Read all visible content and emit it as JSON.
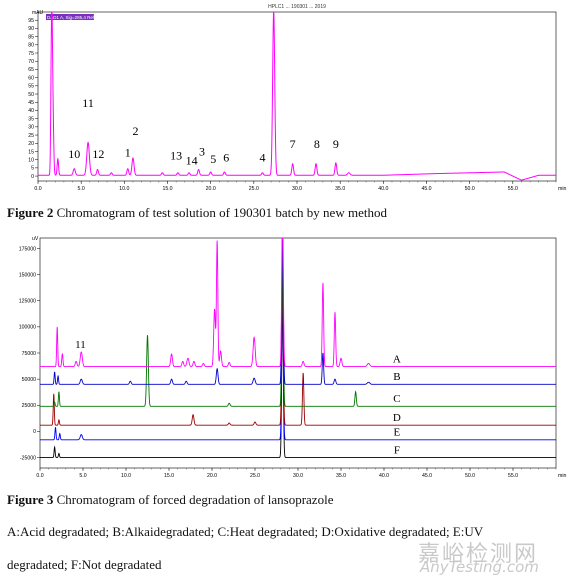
{
  "figure2": {
    "caption_label": "Figure 2",
    "caption_text": "Chromatogram of test solution of 190301 batch by new method",
    "chart_data": {
      "type": "line",
      "title": "",
      "top_header": "HPLC1 ... 190301 ... 2019",
      "ylabel": "mAU",
      "legend": "DAD1 A, Sig=285,4 Ref=360,100 (...)",
      "xlabel": "min",
      "xlim": [
        0,
        60
      ],
      "ylim": [
        -3,
        100
      ],
      "x_ticks": [
        0.0,
        5.0,
        10.0,
        15.0,
        20.0,
        25.0,
        30.0,
        35.0,
        40.0,
        45.0,
        50.0,
        55.0
      ],
      "x_tick_labels": [
        "0.0",
        "5.0",
        "10.0",
        "15.0",
        "20.0",
        "25.0",
        "30.0",
        "35.0",
        "40.0",
        "45.0",
        "50.0",
        "55.0"
      ],
      "y_ticks": [
        0,
        5,
        10,
        15,
        20,
        25,
        30,
        35,
        40,
        45,
        50,
        55,
        60,
        65,
        70,
        75,
        80,
        85,
        90,
        95
      ],
      "y_tick_labels": [
        "0",
        "5",
        "10",
        "15",
        "20",
        "25",
        "30",
        "35",
        "40",
        "45",
        "50",
        "55",
        "60",
        "65",
        "70",
        "75",
        "80",
        "85",
        "90",
        "95"
      ],
      "baseline": 0.5,
      "peaks": [
        {
          "x": 1.6,
          "h": 96,
          "w": 0.08
        },
        {
          "x": 1.75,
          "h": 30,
          "w": 0.08
        },
        {
          "x": 1.5,
          "h": 15,
          "w": 0.06
        },
        {
          "x": 2.3,
          "h": 10,
          "w": 0.08
        },
        {
          "x": 4.2,
          "h": 4,
          "w": 0.12
        },
        {
          "x": 5.8,
          "h": 20,
          "w": 0.15
        },
        {
          "x": 6.9,
          "h": 3.5,
          "w": 0.1
        },
        {
          "x": 8.5,
          "h": 1.5,
          "w": 0.1
        },
        {
          "x": 10.4,
          "h": 4,
          "w": 0.1
        },
        {
          "x": 11.0,
          "h": 10.5,
          "w": 0.12
        },
        {
          "x": 14.4,
          "h": 1.5,
          "w": 0.1
        },
        {
          "x": 16.2,
          "h": 1.5,
          "w": 0.1
        },
        {
          "x": 17.5,
          "h": 1.5,
          "w": 0.1
        },
        {
          "x": 18.6,
          "h": 3.5,
          "w": 0.1
        },
        {
          "x": 20.0,
          "h": 2,
          "w": 0.1
        },
        {
          "x": 21.6,
          "h": 2,
          "w": 0.1
        },
        {
          "x": 26.0,
          "h": 1.5,
          "w": 0.1
        },
        {
          "x": 27.3,
          "h": 100,
          "w": 0.12
        },
        {
          "x": 29.5,
          "h": 7,
          "w": 0.1
        },
        {
          "x": 32.2,
          "h": 7,
          "w": 0.1
        },
        {
          "x": 34.5,
          "h": 7.5,
          "w": 0.1
        },
        {
          "x": 36.0,
          "h": 1.5,
          "w": 0.15
        }
      ],
      "drift": [
        {
          "x": 0,
          "y": 0.5
        },
        {
          "x": 40,
          "y": 0.5
        },
        {
          "x": 46,
          "y": 1.5
        },
        {
          "x": 54,
          "y": 2.5
        },
        {
          "x": 56,
          "y": -2.5
        },
        {
          "x": 58,
          "y": 0.5
        },
        {
          "x": 60,
          "y": 0.5
        }
      ],
      "peak_labels": [
        {
          "text": "11",
          "x": 5.8,
          "y": 42
        },
        {
          "text": "10",
          "x": 4.2,
          "y": 11
        },
        {
          "text": "12",
          "x": 7.0,
          "y": 11
        },
        {
          "text": "1",
          "x": 10.4,
          "y": 12
        },
        {
          "text": "2",
          "x": 11.3,
          "y": 25
        },
        {
          "text": "13",
          "x": 16.0,
          "y": 10
        },
        {
          "text": "14",
          "x": 17.8,
          "y": 7
        },
        {
          "text": "3",
          "x": 19.0,
          "y": 12.5
        },
        {
          "text": "5",
          "x": 20.3,
          "y": 8
        },
        {
          "text": "6",
          "x": 21.8,
          "y": 9
        },
        {
          "text": "4",
          "x": 26.0,
          "y": 9
        },
        {
          "text": "7",
          "x": 29.5,
          "y": 17
        },
        {
          "text": "8",
          "x": 32.3,
          "y": 17
        },
        {
          "text": "9",
          "x": 34.5,
          "y": 17
        }
      ],
      "line_color": "#ff00ff"
    }
  },
  "figure3": {
    "caption_label": "Figure 3",
    "caption_text": "Chromatogram of forced degradation of lansoprazole",
    "legend_line1": "A:Acid degradated; B:Alkaidegradated; C:Heat degradated; D:Oxidative degradated; E:UV",
    "legend_line2": "degradated; F:Not degradated",
    "chart_data": {
      "type": "line",
      "title": "",
      "ylabel": "uV",
      "xlabel": "min",
      "xlim": [
        0,
        60
      ],
      "ylim": [
        -35000,
        185000
      ],
      "x_ticks": [
        0.0,
        5.0,
        10.0,
        15.0,
        20.0,
        25.0,
        30.0,
        35.0,
        40.0,
        45.0,
        50.0,
        55.0
      ],
      "x_tick_labels": [
        "0.0",
        "5.0",
        "10.0",
        "15.0",
        "20.0",
        "25.0",
        "30.0",
        "35.0",
        "40.0",
        "45.0",
        "50.0",
        "55.0"
      ],
      "y_ticks": [
        -25000,
        0,
        25000,
        50000,
        75000,
        100000,
        125000,
        150000,
        175000
      ],
      "y_tick_labels": [
        "-25000",
        "0",
        "25000",
        "50000",
        "75000",
        "100000",
        "125000",
        "150000",
        "175000"
      ],
      "peak_label": {
        "text": "11",
        "x": 4.7,
        "y": 80000
      },
      "series": [
        {
          "name": "A",
          "color": "#ff00ff",
          "baseline": 62000,
          "peaks": [
            {
              "x": 2.0,
              "h": 38000,
              "w": 0.06
            },
            {
              "x": 2.6,
              "h": 12000,
              "w": 0.07
            },
            {
              "x": 4.2,
              "h": 5000,
              "w": 0.1
            },
            {
              "x": 4.8,
              "h": 14000,
              "w": 0.12
            },
            {
              "x": 15.3,
              "h": 12000,
              "w": 0.1
            },
            {
              "x": 16.6,
              "h": 5000,
              "w": 0.1
            },
            {
              "x": 17.2,
              "h": 8000,
              "w": 0.12
            },
            {
              "x": 17.9,
              "h": 5000,
              "w": 0.1
            },
            {
              "x": 19.0,
              "h": 3000,
              "w": 0.1
            },
            {
              "x": 20.3,
              "h": 55000,
              "w": 0.1
            },
            {
              "x": 20.6,
              "h": 120000,
              "w": 0.08
            },
            {
              "x": 21.0,
              "h": 15000,
              "w": 0.1
            },
            {
              "x": 22.0,
              "h": 4000,
              "w": 0.1
            },
            {
              "x": 24.9,
              "h": 28000,
              "w": 0.12
            },
            {
              "x": 28.2,
              "h": 150000,
              "w": 0.09
            },
            {
              "x": 30.6,
              "h": 5000,
              "w": 0.1
            },
            {
              "x": 32.9,
              "h": 80000,
              "w": 0.08
            },
            {
              "x": 34.3,
              "h": 52000,
              "w": 0.08
            },
            {
              "x": 35.0,
              "h": 8000,
              "w": 0.1
            },
            {
              "x": 38.2,
              "h": 3000,
              "w": 0.15
            }
          ]
        },
        {
          "name": "B",
          "color": "#0000cc",
          "baseline": 45000,
          "peaks": [
            {
              "x": 1.7,
              "h": 12000,
              "w": 0.06
            },
            {
              "x": 2.1,
              "h": 8000,
              "w": 0.06
            },
            {
              "x": 4.8,
              "h": 5000,
              "w": 0.12
            },
            {
              "x": 10.5,
              "h": 3000,
              "w": 0.1
            },
            {
              "x": 15.3,
              "h": 5000,
              "w": 0.1
            },
            {
              "x": 17.0,
              "h": 3000,
              "w": 0.1
            },
            {
              "x": 20.6,
              "h": 15000,
              "w": 0.1
            },
            {
              "x": 24.9,
              "h": 6000,
              "w": 0.12
            },
            {
              "x": 28.2,
              "h": 150000,
              "w": 0.09
            },
            {
              "x": 32.9,
              "h": 30000,
              "w": 0.08
            },
            {
              "x": 34.3,
              "h": 5000,
              "w": 0.1
            },
            {
              "x": 38.2,
              "h": 2000,
              "w": 0.15
            }
          ]
        },
        {
          "name": "C",
          "color": "#007700",
          "baseline": 24000,
          "peaks": [
            {
              "x": 1.7,
              "h": 4000,
              "w": 0.06
            },
            {
              "x": 2.2,
              "h": 14000,
              "w": 0.06
            },
            {
              "x": 12.5,
              "h": 68000,
              "w": 0.1
            },
            {
              "x": 22.0,
              "h": 3000,
              "w": 0.1
            },
            {
              "x": 28.2,
              "h": 150000,
              "w": 0.09
            },
            {
              "x": 36.7,
              "h": 14000,
              "w": 0.08
            }
          ]
        },
        {
          "name": "D",
          "color": "#990000",
          "baseline": 6000,
          "peaks": [
            {
              "x": 1.6,
              "h": 30000,
              "w": 0.06
            },
            {
              "x": 2.2,
              "h": 5000,
              "w": 0.06
            },
            {
              "x": 17.8,
              "h": 10000,
              "w": 0.1
            },
            {
              "x": 22.0,
              "h": 2000,
              "w": 0.1
            },
            {
              "x": 25.0,
              "h": 3000,
              "w": 0.1
            },
            {
              "x": 28.2,
              "h": 150000,
              "w": 0.09
            },
            {
              "x": 30.6,
              "h": 50000,
              "w": 0.08
            }
          ]
        },
        {
          "name": "E",
          "color": "#0000ff",
          "baseline": -8000,
          "peaks": [
            {
              "x": 1.8,
              "h": 12000,
              "w": 0.06
            },
            {
              "x": 2.3,
              "h": 6000,
              "w": 0.06
            },
            {
              "x": 4.8,
              "h": 5000,
              "w": 0.12
            },
            {
              "x": 28.2,
              "h": 150000,
              "w": 0.09
            }
          ]
        },
        {
          "name": "F",
          "color": "#000000",
          "baseline": -25000,
          "peaks": [
            {
              "x": 1.7,
              "h": 10000,
              "w": 0.06
            },
            {
              "x": 2.2,
              "h": 4000,
              "w": 0.06
            },
            {
              "x": 28.2,
              "h": 150000,
              "w": 0.09
            }
          ]
        }
      ],
      "series_label_x": 41.5,
      "series_label_offset": 4000
    }
  },
  "watermark": {
    "line1": "嘉峪检测网",
    "line2": "AnyTesting.com"
  }
}
